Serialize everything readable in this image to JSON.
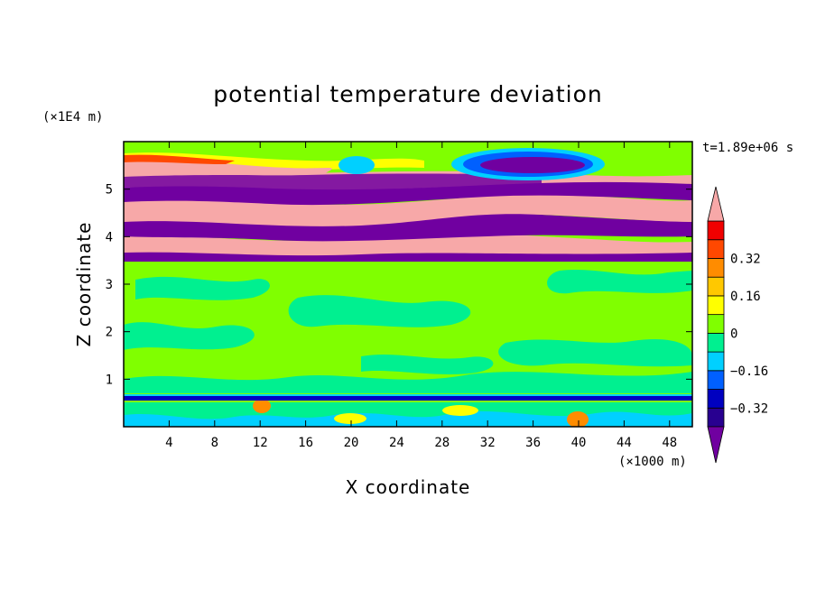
{
  "chart_data": {
    "type": "heatmap",
    "title": "potential temperature deviation",
    "xlabel": "X coordinate",
    "ylabel": "Z coordinate",
    "x_unit": "(×1000 m)",
    "y_unit": "(×1E4 m)",
    "time_label": "t=1.89e+06 s",
    "xlim": [
      0,
      50
    ],
    "ylim": [
      0,
      6
    ],
    "x_ticks": [
      "4",
      "8",
      "12",
      "16",
      "20",
      "24",
      "28",
      "32",
      "36",
      "40",
      "44",
      "48"
    ],
    "x_tick_values": [
      4,
      8,
      12,
      16,
      20,
      24,
      28,
      32,
      36,
      40,
      44,
      48
    ],
    "y_ticks": [
      "1",
      "2",
      "3",
      "4",
      "5"
    ],
    "y_tick_values": [
      1,
      2,
      3,
      4,
      5
    ],
    "colorbar": {
      "levels": [
        -0.48,
        -0.4,
        -0.32,
        -0.24,
        -0.16,
        -0.08,
        0,
        0.08,
        0.16,
        0.24,
        0.32,
        0.4,
        0.48
      ],
      "tick_labels": [
        "0.32",
        "0.16",
        "0",
        "−0.16",
        "−0.32"
      ],
      "tick_values": [
        0.32,
        0.16,
        0,
        -0.16,
        -0.32
      ],
      "colors": [
        "#7000a0",
        "#280090",
        "#0000c0",
        "#0060ff",
        "#00d0ff",
        "#00f090",
        "#80ff00",
        "#ffff00",
        "#ffc800",
        "#ff8c00",
        "#ff4800",
        "#f00000",
        "#f7a8a8"
      ]
    },
    "bands": [
      {
        "zmin": 0.0,
        "zmax": 0.55,
        "description_level": 0.0
      },
      {
        "zmin": 0.55,
        "zmax": 0.65,
        "description_level": -0.4
      },
      {
        "zmin": 0.65,
        "zmax": 3.4,
        "description_level": 0.04
      },
      {
        "zmin": 3.4,
        "zmax": 5.9,
        "description_level": 0.48
      }
    ]
  }
}
